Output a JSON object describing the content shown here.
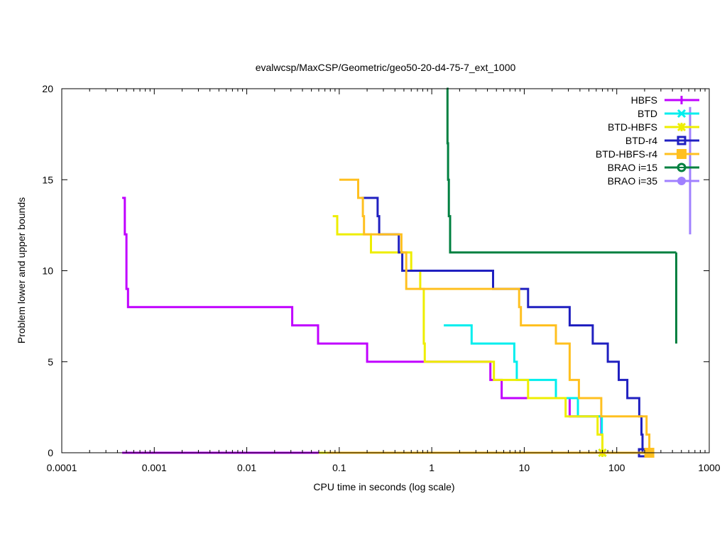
{
  "chart_data": {
    "type": "line",
    "title": "evalwcsp/MaxCSP/Geometric/geo50-20-d4-75-7_ext_1000",
    "xlabel": "CPU time in seconds (log scale)",
    "ylabel": "Problem lower and upper bounds",
    "xscale": "log",
    "xlim": [
      0.0001,
      1000
    ],
    "ylim": [
      0,
      20
    ],
    "xticks": [
      0.0001,
      0.001,
      0.01,
      0.1,
      1,
      10,
      100,
      1000
    ],
    "xtick_labels": [
      "0.0001",
      "0.001",
      "0.01",
      "0.1",
      "1",
      "10",
      "100",
      "1000"
    ],
    "yticks": [
      0,
      5,
      10,
      15,
      20
    ],
    "ytick_labels": [
      "0",
      "5",
      "10",
      "15",
      "20"
    ],
    "grid": false,
    "legend_position": "top-right",
    "step": true,
    "series": [
      {
        "name": "HBFS",
        "color": "#c000ff",
        "marker": "plus",
        "upper": [
          [
            0.00045,
            14
          ],
          [
            0.00048,
            12
          ],
          [
            0.0005,
            9
          ],
          [
            0.00052,
            8
          ],
          [
            0.031,
            7
          ],
          [
            0.059,
            6
          ],
          [
            0.2,
            5
          ],
          [
            4.3,
            4
          ],
          [
            5.7,
            3
          ],
          [
            31,
            2
          ],
          [
            68,
            1
          ],
          [
            70,
            0
          ]
        ],
        "lower": [
          [
            0.00045,
            0
          ],
          [
            70,
            0
          ]
        ]
      },
      {
        "name": "BTD",
        "color": "#00eeee",
        "marker": "x",
        "upper": [
          [
            1.35,
            7
          ],
          [
            2.7,
            6
          ],
          [
            7.8,
            5
          ],
          [
            8.3,
            4
          ],
          [
            22,
            3
          ],
          [
            38,
            2
          ],
          [
            69,
            1
          ],
          [
            70,
            0
          ]
        ],
        "lower": [
          [
            70,
            0
          ]
        ]
      },
      {
        "name": "BTD-HBFS",
        "color": "#eeee00",
        "marker": "star",
        "upper": [
          [
            0.085,
            13
          ],
          [
            0.095,
            12
          ],
          [
            0.22,
            11
          ],
          [
            0.6,
            10
          ],
          [
            0.75,
            9
          ],
          [
            0.82,
            6
          ],
          [
            0.84,
            5
          ],
          [
            4.7,
            4
          ],
          [
            11,
            3
          ],
          [
            28,
            2
          ],
          [
            62,
            1
          ],
          [
            70,
            0
          ]
        ],
        "lower": [
          [
            0.06,
            0
          ],
          [
            70,
            0
          ]
        ]
      },
      {
        "name": "BTD-r4",
        "color": "#2020c0",
        "marker": "open-square",
        "upper": [
          [
            0.175,
            14
          ],
          [
            0.26,
            13
          ],
          [
            0.27,
            12
          ],
          [
            0.44,
            11
          ],
          [
            0.48,
            10
          ],
          [
            4.6,
            9
          ],
          [
            11,
            8
          ],
          [
            31,
            7
          ],
          [
            55,
            6
          ],
          [
            80,
            5
          ],
          [
            105,
            4
          ],
          [
            130,
            3
          ],
          [
            175,
            2
          ],
          [
            185,
            1
          ],
          [
            190,
            0
          ]
        ],
        "lower": [
          [
            190,
            0
          ]
        ]
      },
      {
        "name": "BTD-HBFS-r4",
        "color": "#ffc020",
        "marker": "filled-square",
        "upper": [
          [
            0.1,
            15
          ],
          [
            0.16,
            14
          ],
          [
            0.18,
            13
          ],
          [
            0.185,
            12
          ],
          [
            0.47,
            11
          ],
          [
            0.53,
            9
          ],
          [
            8.8,
            8
          ],
          [
            9.2,
            7
          ],
          [
            22,
            6
          ],
          [
            31,
            4
          ],
          [
            39,
            3
          ],
          [
            68,
            2
          ],
          [
            210,
            1
          ],
          [
            225,
            0
          ]
        ],
        "lower": [
          [
            0.075,
            0
          ],
          [
            225,
            0
          ]
        ]
      },
      {
        "name": "BRAO i=15",
        "color": "#008040",
        "marker": "circle-dot",
        "upper": [
          [
            1.45,
            20
          ],
          [
            1.48,
            17
          ],
          [
            1.5,
            15
          ],
          [
            1.53,
            13
          ],
          [
            1.58,
            11
          ],
          [
            440,
            11
          ]
        ],
        "lower": [
          [
            440,
            6
          ]
        ]
      },
      {
        "name": "BRAO i=35",
        "color": "#a080ff",
        "marker": "filled-circle",
        "upper": [
          [
            620,
            19
          ]
        ],
        "lower": [
          [
            620,
            12
          ]
        ]
      }
    ]
  }
}
